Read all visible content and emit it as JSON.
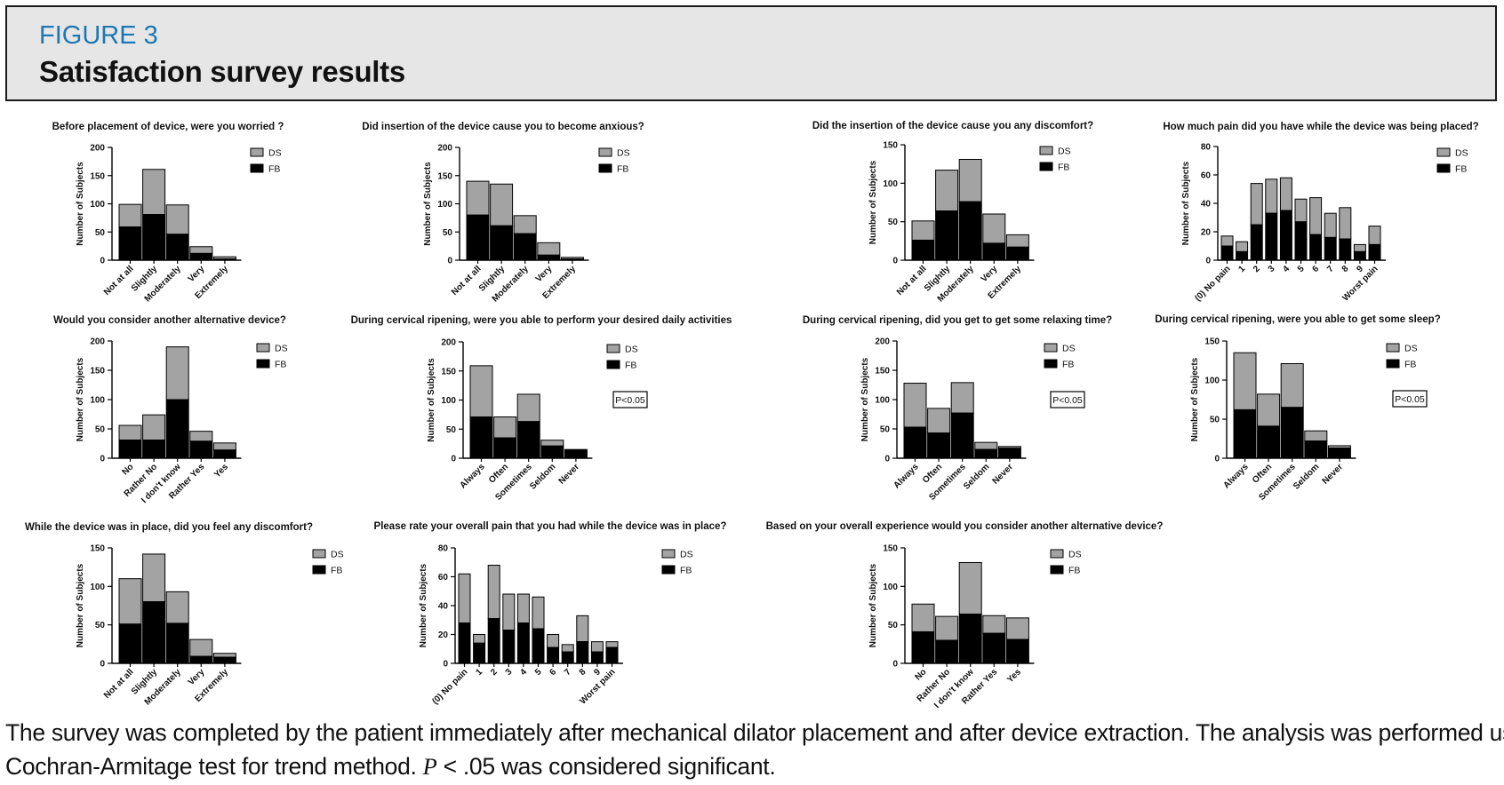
{
  "figure": {
    "label": "FIGURE 3",
    "title": "Satisfaction survey results",
    "caption_line1": "The survey was completed by the patient immediately after mechanical dilator placement and after device extraction. The analysis was performed using a",
    "caption_line2_pre": "Cochran-Armitage test for trend method. ",
    "caption_p": "P",
    "caption_line2_post": " < .05 was considered significant."
  },
  "colors": {
    "DS": "#a3a3a3",
    "FB": "#000000"
  },
  "chart_data": [
    {
      "type": "bar",
      "stacked": true,
      "title": "Before placement of device, were you worried ?",
      "ylabel": "Number of Subjects",
      "ylim": [
        0,
        200
      ],
      "yticks": [
        0,
        50,
        100,
        150,
        200
      ],
      "categories": [
        "Not at all",
        "Slightly",
        "Moderately",
        "Very",
        "Extremely"
      ],
      "series": [
        {
          "name": "DS",
          "values": [
            40,
            80,
            52,
            12,
            4
          ]
        },
        {
          "name": "FB",
          "values": [
            59,
            81,
            46,
            12,
            2
          ]
        }
      ],
      "annotation": ""
    },
    {
      "type": "bar",
      "stacked": true,
      "title": "Did insertion of the device cause you to become anxious?",
      "ylabel": "Number of Subjects",
      "ylim": [
        0,
        200
      ],
      "yticks": [
        0,
        50,
        100,
        150,
        200
      ],
      "categories": [
        "Not at all",
        "Slightly",
        "Moderately",
        "Very",
        "Extremely"
      ],
      "series": [
        {
          "name": "DS",
          "values": [
            60,
            74,
            32,
            22,
            3
          ]
        },
        {
          "name": "FB",
          "values": [
            80,
            61,
            47,
            9,
            2
          ]
        }
      ],
      "annotation": ""
    },
    {
      "type": "bar",
      "stacked": true,
      "title": "Did the insertion of the device cause you any discomfort?",
      "ylabel": "Number of Subjects",
      "ylim": [
        0,
        150
      ],
      "yticks": [
        0,
        50,
        100,
        150
      ],
      "categories": [
        "Not at all",
        "Slightly",
        "Moderately",
        "Very",
        "Extremely"
      ],
      "series": [
        {
          "name": "DS",
          "values": [
            25,
            53,
            55,
            38,
            16
          ]
        },
        {
          "name": "FB",
          "values": [
            26,
            64,
            76,
            22,
            17
          ]
        }
      ],
      "annotation": ""
    },
    {
      "type": "bar",
      "stacked": true,
      "title": "How much pain did you have while the device was being placed?",
      "ylabel": "Number of Subjects",
      "ylim": [
        0,
        80
      ],
      "yticks": [
        0,
        20,
        40,
        60,
        80
      ],
      "categories": [
        "(0) No pain",
        "1",
        "2",
        "3",
        "4",
        "5",
        "6",
        "7",
        "8",
        "9",
        "Worst pain"
      ],
      "series": [
        {
          "name": "DS",
          "values": [
            7,
            7,
            29,
            24,
            23,
            16,
            26,
            17,
            22,
            5,
            13
          ]
        },
        {
          "name": "FB",
          "values": [
            10,
            6,
            25,
            33,
            35,
            27,
            18,
            16,
            15,
            6,
            11
          ]
        }
      ],
      "annotation": ""
    },
    {
      "type": "bar",
      "stacked": true,
      "title": "Would you consider another alternative device?",
      "ylabel": "Number of Subjects",
      "ylim": [
        0,
        200
      ],
      "yticks": [
        0,
        50,
        100,
        150,
        200
      ],
      "categories": [
        "No",
        "Rather No",
        "I don't know",
        "Rather Yes",
        "Yes"
      ],
      "series": [
        {
          "name": "DS",
          "values": [
            25,
            43,
            90,
            17,
            12
          ]
        },
        {
          "name": "FB",
          "values": [
            31,
            31,
            100,
            29,
            14
          ]
        }
      ],
      "annotation": ""
    },
    {
      "type": "bar",
      "stacked": true,
      "title": "During cervical ripening, were you able to perform your desired daily activities",
      "ylabel": "Number of Subjects",
      "ylim": [
        0,
        200
      ],
      "yticks": [
        0,
        50,
        100,
        150,
        200
      ],
      "categories": [
        "Always",
        "Often",
        "Sometimes",
        "Seldom",
        "Never"
      ],
      "series": [
        {
          "name": "DS",
          "values": [
            88,
            36,
            47,
            10,
            0
          ]
        },
        {
          "name": "FB",
          "values": [
            71,
            35,
            63,
            21,
            15
          ]
        }
      ],
      "annotation": "P<0.05"
    },
    {
      "type": "bar",
      "stacked": true,
      "title": "During cervical ripening, did you get to get some relaxing time?",
      "ylabel": "Number of Subjects",
      "ylim": [
        0,
        200
      ],
      "yticks": [
        0,
        50,
        100,
        150,
        200
      ],
      "categories": [
        "Always",
        "Often",
        "Sometimes",
        "Seldom",
        "Never"
      ],
      "series": [
        {
          "name": "DS",
          "values": [
            75,
            42,
            52,
            12,
            3
          ]
        },
        {
          "name": "FB",
          "values": [
            53,
            43,
            77,
            15,
            17
          ]
        }
      ],
      "annotation": "P<0.05"
    },
    {
      "type": "bar",
      "stacked": true,
      "title": "During cervical ripening, were you able to get some sleep?",
      "ylabel": "Number of Subjects",
      "ylim": [
        0,
        150
      ],
      "yticks": [
        0,
        50,
        100,
        150
      ],
      "categories": [
        "Always",
        "Often",
        "Sometimes",
        "Seldom",
        "Never"
      ],
      "series": [
        {
          "name": "DS",
          "values": [
            73,
            41,
            56,
            13,
            3
          ]
        },
        {
          "name": "FB",
          "values": [
            62,
            41,
            65,
            22,
            13
          ]
        }
      ],
      "annotation": "P<0.05"
    },
    {
      "type": "bar",
      "stacked": true,
      "title": "While the device was in place, did you feel any discomfort?",
      "ylabel": "Number of Subjects",
      "ylim": [
        0,
        150
      ],
      "yticks": [
        0,
        50,
        100,
        150
      ],
      "categories": [
        "Not at all",
        "Slightly",
        "Moderately",
        "Very",
        "Extremely"
      ],
      "series": [
        {
          "name": "DS",
          "values": [
            59,
            62,
            41,
            22,
            5
          ]
        },
        {
          "name": "FB",
          "values": [
            51,
            80,
            52,
            9,
            8
          ]
        }
      ],
      "annotation": ""
    },
    {
      "type": "bar",
      "stacked": true,
      "title": "Please rate your overall pain that you had while the device was in place?",
      "ylabel": "Number of Subjects",
      "ylim": [
        0,
        80
      ],
      "yticks": [
        0,
        20,
        40,
        60,
        80
      ],
      "categories": [
        "(0) No pain",
        "1",
        "2",
        "3",
        "4",
        "5",
        "6",
        "7",
        "8",
        "9",
        "Worst pain"
      ],
      "series": [
        {
          "name": "DS",
          "values": [
            34,
            6,
            37,
            25,
            20,
            22,
            9,
            5,
            18,
            7,
            4
          ]
        },
        {
          "name": "FB",
          "values": [
            28,
            14,
            31,
            23,
            28,
            24,
            11,
            8,
            15,
            8,
            11
          ]
        }
      ],
      "annotation": ""
    },
    {
      "type": "bar",
      "stacked": true,
      "title": "Based on your overall experience would you consider another alternative device?",
      "ylabel": "Number of Subjects",
      "ylim": [
        0,
        150
      ],
      "yticks": [
        0,
        50,
        100,
        150
      ],
      "categories": [
        "No",
        "Rather No",
        "I don't know",
        "Rather Yes",
        "Yes"
      ],
      "series": [
        {
          "name": "DS",
          "values": [
            36,
            31,
            67,
            23,
            28
          ]
        },
        {
          "name": "FB",
          "values": [
            41,
            30,
            64,
            39,
            31
          ]
        }
      ],
      "annotation": ""
    }
  ]
}
